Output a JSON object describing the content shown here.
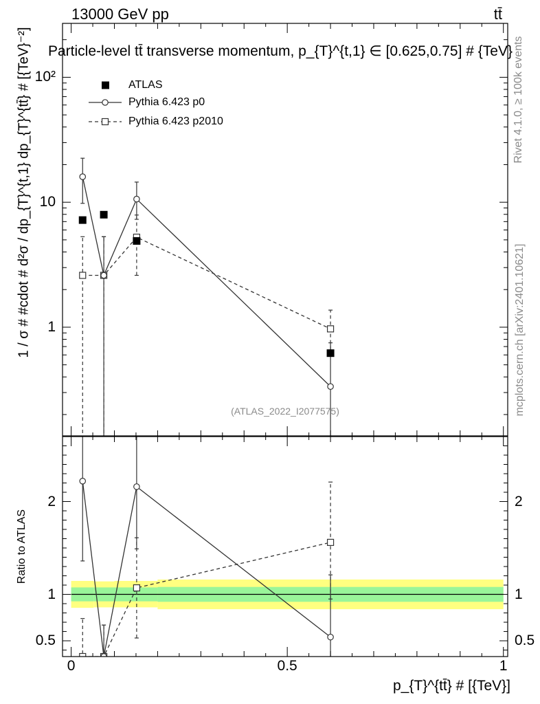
{
  "header": {
    "energy": "13000 GeV pp",
    "process": "tt̄"
  },
  "side": {
    "generator": "Rivet 4.1.0, ≥ 100k events",
    "source": "mcplots.cern.ch [arXiv:2401.10621]"
  },
  "chart_data": [
    {
      "type": "scatter",
      "panel": "main",
      "title": "Particle-level tt̄ transverse momentum, p_{T}^{t,1} ∈ [0.625,0.75] # {TeV}",
      "ylabel": "1 / σ # #cdot # d²σ / dp_{T}^{t,1} dp_{T}^{tt̄} # [{TeV}⁻²]",
      "watermark": "(ATLAS_2022_I2077575)",
      "yscale": "log",
      "xlim": [
        -0.02,
        1.01
      ],
      "ylim": [
        0.135,
        270
      ],
      "yticks": [
        {
          "value": 1,
          "label": "1"
        },
        {
          "value": 10,
          "label": "10"
        },
        {
          "value": 100,
          "label": "10²"
        }
      ],
      "legend_position": "top-left",
      "series": [
        {
          "name": "ATLAS",
          "style": "filled-square",
          "x": [
            0.0265,
            0.0755,
            0.1515,
            0.6
          ],
          "y": [
            7.2,
            7.95,
            4.9,
            0.62
          ]
        },
        {
          "name": "Pythia 6.423 p0",
          "style": "solid-circle",
          "x": [
            0.0265,
            0.0755,
            0.1515,
            0.6
          ],
          "y": [
            16.0,
            2.6,
            10.6,
            0.335
          ],
          "yerr_low": [
            9.8,
            0.0,
            7.3,
            0.0
          ],
          "yerr_high": [
            22.5,
            5.3,
            14.5,
            0.75
          ]
        },
        {
          "name": "Pythia 6.423 p2010",
          "style": "dashed-square",
          "x": [
            0.0265,
            0.0755,
            0.1515,
            0.6
          ],
          "y": [
            2.6,
            2.6,
            5.25,
            0.97
          ],
          "yerr_low": [
            0.0,
            0.0,
            2.6,
            0.59
          ],
          "yerr_high": [
            5.3,
            5.3,
            7.9,
            1.37
          ]
        }
      ]
    },
    {
      "type": "scatter",
      "panel": "ratio",
      "ylabel": "Ratio to ATLAS",
      "xlabel": "p_{T}^{tt̄} # [{TeV}]",
      "xlim": [
        -0.02,
        1.01
      ],
      "ylim": [
        0.33,
        2.7
      ],
      "xticks": [
        {
          "value": 0,
          "label": "0"
        },
        {
          "value": 0.5,
          "label": "0.5"
        },
        {
          "value": 1,
          "label": "1"
        }
      ],
      "yticks": [
        {
          "value": 0.5,
          "label": "0.5"
        },
        {
          "value": 1,
          "label": "1"
        },
        {
          "value": 2,
          "label": "2"
        }
      ],
      "bands": [
        {
          "x0": 0.0,
          "x1": 0.052,
          "stat": [
            0.925,
            1.075
          ],
          "total": [
            0.855,
            1.145
          ]
        },
        {
          "x0": 0.052,
          "x1": 0.1,
          "stat": [
            0.925,
            1.075
          ],
          "total": [
            0.86,
            1.14
          ]
        },
        {
          "x0": 0.1,
          "x1": 0.2,
          "stat": [
            0.925,
            1.075
          ],
          "total": [
            0.86,
            1.145
          ]
        },
        {
          "x0": 0.2,
          "x1": 1.0,
          "stat": [
            0.92,
            1.08
          ],
          "total": [
            0.84,
            1.16
          ]
        }
      ],
      "series": [
        {
          "name": "Pythia 6.423 p0",
          "style": "solid-circle",
          "x": [
            0.0265,
            0.0755,
            0.1515,
            0.6
          ],
          "y": [
            2.22,
            0.33,
            2.16,
            0.54
          ],
          "yerr_low": [
            1.36,
            0.33,
            1.49,
            0.3
          ],
          "yerr_high": [
            2.9,
            0.67,
            2.96,
            1.21
          ]
        },
        {
          "name": "Pythia 6.423 p2010",
          "style": "dashed-square",
          "x": [
            0.0265,
            0.0755,
            0.1515,
            0.6
          ],
          "y": [
            0.33,
            0.33,
            1.07,
            1.56
          ],
          "yerr_low": [
            0.0,
            0.0,
            0.53,
            0.95
          ],
          "yerr_high": [
            0.74,
            0.67,
            1.61,
            2.21
          ]
        }
      ]
    }
  ]
}
